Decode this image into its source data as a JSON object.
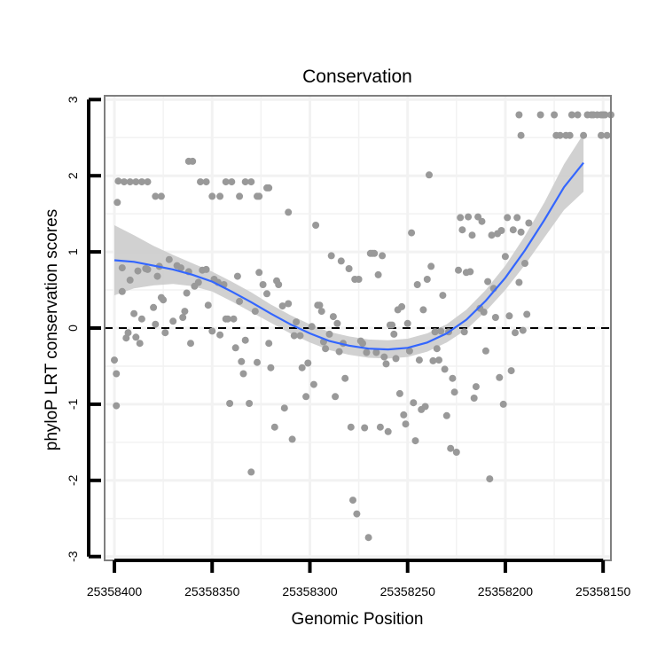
{
  "chart_data": {
    "type": "scatter",
    "title": "Conservation",
    "xlabel": "Genomic Position",
    "ylabel": "phyloP LRT conservation scores",
    "x_reversed": true,
    "xlim": [
      25358405,
      25358146
    ],
    "ylim": [
      -3.05,
      3.05
    ],
    "x_ticks": [
      25358400,
      25358350,
      25358300,
      25358250,
      25358200,
      25358150
    ],
    "x_tick_labels": [
      "25358400",
      "25358350",
      "25358300",
      "25358250",
      "25358200",
      "25358150"
    ],
    "y_ticks": [
      -3,
      -2,
      -1,
      0,
      1,
      2,
      3
    ],
    "y_tick_labels": [
      "-3",
      "-2",
      "-1",
      "0",
      "1",
      "2",
      "3"
    ],
    "reference_line": {
      "y": 0,
      "style": "dashed"
    },
    "grid": true,
    "colors": {
      "points": "#999999",
      "smooth": "#3366ff",
      "band": "#cccccc",
      "grid": "#f2f2f2",
      "frame": "#7f7f7f"
    },
    "points": [
      [
        25358398.5,
        1.65
      ],
      [
        25358398,
        1.93
      ],
      [
        25358395,
        1.92
      ],
      [
        25358392,
        1.92
      ],
      [
        25358389,
        1.92
      ],
      [
        25358386,
        1.92
      ],
      [
        25358383,
        1.92
      ],
      [
        25358379,
        1.73
      ],
      [
        25358376,
        1.73
      ],
      [
        25358362,
        2.19
      ],
      [
        25358360,
        2.19
      ],
      [
        25358356,
        1.92
      ],
      [
        25358353,
        1.92
      ],
      [
        25358350,
        1.73
      ],
      [
        25358346,
        1.73
      ],
      [
        25358343,
        1.92
      ],
      [
        25358340,
        1.92
      ],
      [
        25358336,
        1.73
      ],
      [
        25358333,
        1.92
      ],
      [
        25358330,
        1.92
      ],
      [
        25358327,
        1.73
      ],
      [
        25358326,
        1.73
      ],
      [
        25358322,
        1.84
      ],
      [
        25358321,
        1.84
      ],
      [
        25358311,
        1.52
      ],
      [
        25358193,
        2.8
      ],
      [
        25358192,
        2.53
      ],
      [
        25358182,
        2.8
      ],
      [
        25358175,
        2.8
      ],
      [
        25358174,
        2.53
      ],
      [
        25358172,
        2.53
      ],
      [
        25358169,
        2.53
      ],
      [
        25358167,
        2.53
      ],
      [
        25358166,
        2.8
      ],
      [
        25358163,
        2.8
      ],
      [
        25358160,
        2.53
      ],
      [
        25358158,
        2.8
      ],
      [
        25358156,
        2.8
      ],
      [
        25358155,
        2.8
      ],
      [
        25358153,
        2.8
      ],
      [
        25358151,
        2.53
      ],
      [
        25358151,
        2.8
      ],
      [
        25358150,
        2.8
      ],
      [
        25358149,
        2.8
      ],
      [
        25358148,
        2.53
      ],
      [
        25358146,
        2.8
      ],
      [
        25358400,
        -0.42
      ],
      [
        25358399,
        -0.6
      ],
      [
        25358399,
        -1.02
      ],
      [
        25358396,
        0.79
      ],
      [
        25358396,
        0.48
      ],
      [
        25358394,
        -0.13
      ],
      [
        25358393,
        -0.06
      ],
      [
        25358392,
        0.63
      ],
      [
        25358390,
        0.19
      ],
      [
        25358389,
        -0.12
      ],
      [
        25358388,
        0.75
      ],
      [
        25358387,
        -0.2
      ],
      [
        25358386,
        0.12
      ],
      [
        25358384,
        0.78
      ],
      [
        25358383,
        0.77
      ],
      [
        25358380,
        0.27
      ],
      [
        25358379,
        0.05
      ],
      [
        25358378,
        0.68
      ],
      [
        25358377,
        0.81
      ],
      [
        25358376,
        0.4
      ],
      [
        25358375,
        0.37
      ],
      [
        25358374,
        -0.06
      ],
      [
        25358372,
        0.9
      ],
      [
        25358370,
        0.09
      ],
      [
        25358368,
        0.82
      ],
      [
        25358366,
        0.79
      ],
      [
        25358365,
        0.14
      ],
      [
        25358364,
        0.22
      ],
      [
        25358363,
        0.46
      ],
      [
        25358362,
        0.74
      ],
      [
        25358361,
        -0.2
      ],
      [
        25358359,
        0.55
      ],
      [
        25358357,
        0.6
      ],
      [
        25358355,
        0.76
      ],
      [
        25358353,
        0.77
      ],
      [
        25358352,
        0.3
      ],
      [
        25358350,
        -0.04
      ],
      [
        25358349,
        0.64
      ],
      [
        25358347,
        0.6
      ],
      [
        25358346,
        -0.09
      ],
      [
        25358344,
        0.57
      ],
      [
        25358343,
        0.12
      ],
      [
        25358342,
        0.12
      ],
      [
        25358341,
        -0.99
      ],
      [
        25358339,
        0.12
      ],
      [
        25358338,
        -0.26
      ],
      [
        25358337,
        0.68
      ],
      [
        25358336,
        0.35
      ],
      [
        25358335,
        -0.44
      ],
      [
        25358334,
        -0.6
      ],
      [
        25358333,
        -0.16
      ],
      [
        25358331,
        -0.99
      ],
      [
        25358330,
        -1.89
      ],
      [
        25358328,
        0.22
      ],
      [
        25358327,
        -0.45
      ],
      [
        25358326,
        0.73
      ],
      [
        25358324,
        0.57
      ],
      [
        25358322,
        0.45
      ],
      [
        25358321,
        -0.2
      ],
      [
        25358320,
        -0.52
      ],
      [
        25358318,
        -1.3
      ],
      [
        25358317,
        0.62
      ],
      [
        25358316,
        0.57
      ],
      [
        25358314,
        0.29
      ],
      [
        25358313,
        -1.05
      ],
      [
        25358311,
        0.32
      ],
      [
        25358309,
        -1.46
      ],
      [
        25358308,
        -0.1
      ],
      [
        25358307,
        0.08
      ],
      [
        25358305,
        -0.1
      ],
      [
        25358304,
        -0.52
      ],
      [
        25358302,
        -0.9
      ],
      [
        25358301,
        -0.46
      ],
      [
        25358299,
        0.02
      ],
      [
        25358298,
        -0.74
      ],
      [
        25358297,
        1.35
      ],
      [
        25358296,
        0.3
      ],
      [
        25358295,
        0.3
      ],
      [
        25358294,
        0.22
      ],
      [
        25358293,
        -0.18
      ],
      [
        25358292,
        -0.27
      ],
      [
        25358290,
        -0.08
      ],
      [
        25358289,
        0.95
      ],
      [
        25358288,
        0.15
      ],
      [
        25358287,
        -0.9
      ],
      [
        25358286,
        0.06
      ],
      [
        25358285,
        -0.31
      ],
      [
        25358284,
        0.88
      ],
      [
        25358283,
        -0.2
      ],
      [
        25358282,
        -0.66
      ],
      [
        25358280,
        0.78
      ],
      [
        25358279,
        -1.3
      ],
      [
        25358278,
        -2.26
      ],
      [
        25358277,
        0.64
      ],
      [
        25358276,
        -2.44
      ],
      [
        25358275,
        0.64
      ],
      [
        25358274,
        -0.17
      ],
      [
        25358273,
        -0.2
      ],
      [
        25358272,
        -1.31
      ],
      [
        25358271,
        -0.32
      ],
      [
        25358270,
        -2.75
      ],
      [
        25358269,
        0.98
      ],
      [
        25358268,
        0.98
      ],
      [
        25358267,
        0.98
      ],
      [
        25358266,
        -0.32
      ],
      [
        25358265,
        0.7
      ],
      [
        25358264,
        -1.3
      ],
      [
        25358263,
        0.95
      ],
      [
        25358262,
        -0.38
      ],
      [
        25358261,
        -0.47
      ],
      [
        25358260,
        -1.36
      ],
      [
        25358259,
        0.04
      ],
      [
        25358258,
        0.04
      ],
      [
        25358257,
        -0.08
      ],
      [
        25358256,
        -0.4
      ],
      [
        25358255,
        0.24
      ],
      [
        25358254,
        -0.86
      ],
      [
        25358253,
        0.28
      ],
      [
        25358252,
        -1.14
      ],
      [
        25358251,
        -1.26
      ],
      [
        25358250,
        0.06
      ],
      [
        25358249,
        -0.3
      ],
      [
        25358248,
        1.25
      ],
      [
        25358247,
        -0.98
      ],
      [
        25358246,
        -1.48
      ],
      [
        25358245,
        0.57
      ],
      [
        25358244,
        -0.42
      ],
      [
        25358243,
        -1.07
      ],
      [
        25358242,
        0.24
      ],
      [
        25358241,
        -1.03
      ],
      [
        25358240,
        0.64
      ],
      [
        25358239,
        2.01
      ],
      [
        25358238,
        0.81
      ],
      [
        25358237,
        -0.43
      ],
      [
        25358236,
        -0.05
      ],
      [
        25358235,
        -0.27
      ],
      [
        25358234,
        -0.42
      ],
      [
        25358233,
        -0.04
      ],
      [
        25358232,
        0.43
      ],
      [
        25358231,
        -0.54
      ],
      [
        25358230,
        -1.15
      ],
      [
        25358229,
        -0.05
      ],
      [
        25358228,
        -1.58
      ],
      [
        25358227,
        -0.66
      ],
      [
        25358226,
        -0.84
      ],
      [
        25358225,
        -1.63
      ],
      [
        25358224,
        0.76
      ],
      [
        25358223,
        1.45
      ],
      [
        25358222,
        1.29
      ],
      [
        25358221,
        -0.05
      ],
      [
        25358220,
        0.73
      ],
      [
        25358219,
        1.46
      ],
      [
        25358218,
        0.74
      ],
      [
        25358217,
        1.22
      ],
      [
        25358216,
        -0.92
      ],
      [
        25358215,
        -0.77
      ],
      [
        25358214,
        1.46
      ],
      [
        25358213,
        0.26
      ],
      [
        25358212,
        1.4
      ],
      [
        25358211,
        0.21
      ],
      [
        25358210,
        -0.3
      ],
      [
        25358209,
        0.61
      ],
      [
        25358208,
        -1.98
      ],
      [
        25358207,
        1.22
      ],
      [
        25358206,
        0.52
      ],
      [
        25358205,
        0.14
      ],
      [
        25358204,
        1.24
      ],
      [
        25358203,
        -0.65
      ],
      [
        25358202,
        1.28
      ],
      [
        25358201,
        -1.0
      ],
      [
        25358200,
        0.94
      ],
      [
        25358199,
        1.45
      ],
      [
        25358198,
        0.16
      ],
      [
        25358197,
        -0.56
      ],
      [
        25358196,
        1.29
      ],
      [
        25358195,
        -0.06
      ],
      [
        25358194,
        1.45
      ],
      [
        25358193,
        0.6
      ],
      [
        25358192,
        1.26
      ],
      [
        25358191,
        -0.03
      ],
      [
        25358190,
        0.85
      ],
      [
        25358189,
        0.18
      ],
      [
        25358188,
        1.38
      ]
    ],
    "smooth": [
      [
        25358400,
        0.89
      ],
      [
        25358390,
        0.87
      ],
      [
        25358380,
        0.82
      ],
      [
        25358370,
        0.77
      ],
      [
        25358360,
        0.7
      ],
      [
        25358350,
        0.61
      ],
      [
        25358340,
        0.48
      ],
      [
        25358330,
        0.34
      ],
      [
        25358320,
        0.19
      ],
      [
        25358310,
        0.05
      ],
      [
        25358300,
        -0.07
      ],
      [
        25358290,
        -0.17
      ],
      [
        25358280,
        -0.23
      ],
      [
        25358270,
        -0.27
      ],
      [
        25358260,
        -0.28
      ],
      [
        25358250,
        -0.26
      ],
      [
        25358240,
        -0.19
      ],
      [
        25358230,
        -0.07
      ],
      [
        25358220,
        0.11
      ],
      [
        25358210,
        0.36
      ],
      [
        25358200,
        0.66
      ],
      [
        25358190,
        1.02
      ],
      [
        25358180,
        1.42
      ],
      [
        25358170,
        1.85
      ],
      [
        25358160,
        2.17
      ]
    ],
    "smooth_se": [
      0.46,
      0.35,
      0.26,
      0.19,
      0.15,
      0.13,
      0.13,
      0.13,
      0.12,
      0.12,
      0.12,
      0.12,
      0.12,
      0.12,
      0.12,
      0.12,
      0.12,
      0.12,
      0.13,
      0.14,
      0.16,
      0.19,
      0.23,
      0.3,
      0.38
    ]
  }
}
